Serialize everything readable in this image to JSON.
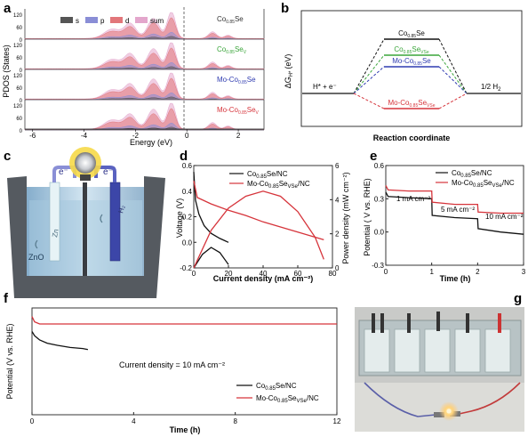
{
  "panel_labels": {
    "a": "a",
    "b": "b",
    "c": "c",
    "d": "d",
    "e": "e",
    "f": "f",
    "g": "g"
  },
  "colors": {
    "black": "#111111",
    "green": "#3aa53a",
    "blue": "#2f3bb0",
    "red": "#d6343b",
    "pink": "#cf6aa8",
    "pdos_s": "#444444",
    "pdos_p": "#8a8ed6",
    "pdos_d": "#e2767a"
  },
  "panel_a": {
    "ylabel": "PDOS (States)",
    "xlabel": "Energy (eV)",
    "xticks": [
      "-6",
      "-4",
      "-2",
      "0",
      "2"
    ],
    "yticks": [
      "0",
      "60",
      "120"
    ],
    "legend": [
      "s",
      "p",
      "d",
      "sum"
    ],
    "rows": [
      {
        "base": "Co",
        "sub": "0.85",
        "tail": "Se",
        "tail_sub": "",
        "color": "#333333"
      },
      {
        "base": "Co",
        "sub": "0.85",
        "tail": "Se",
        "tail_sub": "V",
        "color": "#3aa53a"
      },
      {
        "base": "Mo-Co",
        "sub": "0.85",
        "tail": "Se",
        "tail_sub": "",
        "color": "#2f3bb0"
      },
      {
        "base": "Mo-Co",
        "sub": "0.85",
        "tail": "Se",
        "tail_sub": "V",
        "color": "#d6343b"
      }
    ]
  },
  "panel_b": {
    "ylabel": "ΔG",
    "ylabel_sub": "H*",
    "ylabel_unit": "(eV)",
    "xlabel": "Reaction coordinate",
    "left_state": "H* + e⁻",
    "right_state": "1/2 H",
    "right_state_sub": "2",
    "levels": [
      {
        "base": "Co",
        "sub": "0.85",
        "tail": "Se",
        "tail_sub": "",
        "color": "#111111"
      },
      {
        "base": "Co",
        "sub": "0.85",
        "tail": "Se",
        "tail_sub": "VSe",
        "color": "#3aa53a"
      },
      {
        "base": "Mo-Co",
        "sub": "0.85",
        "tail": "Se",
        "tail_sub": "",
        "color": "#2f3bb0"
      },
      {
        "base": "Mo-Co",
        "sub": "0.85",
        "tail": "Se",
        "tail_sub": "VSe",
        "color": "#d6343b"
      }
    ]
  },
  "panel_c": {
    "electron_left": "e⁻",
    "electron_right": "e⁻",
    "anode": "Zn",
    "product": "ZnO",
    "cathode": "H₂"
  },
  "panel_d": {
    "ylabel_left": "Voltage (V)",
    "ylabel_right": "Power density (mW cm⁻²)",
    "xlabel": "Current density (mA cm⁻²)",
    "legend": [
      {
        "text": "Co0.85Se/NC",
        "color": "#111111"
      },
      {
        "text": "Mo-Co0.85SeVSe/NC",
        "color": "#d6343b"
      }
    ],
    "chart_data": {
      "type": "line",
      "xlim": [
        0,
        80
      ],
      "ylim_left": [
        -0.2,
        0.6
      ],
      "ylim_right": [
        0,
        6
      ],
      "xticks": [
        "0",
        "20",
        "40",
        "60",
        "80"
      ],
      "yticks_left": [
        "-0.2",
        "0.0",
        "0.2",
        "0.4",
        "0.6"
      ],
      "yticks_right": [
        "0",
        "2",
        "4",
        "6"
      ],
      "series": [
        {
          "name": "Co0.85Se/NC voltage",
          "axis": "left",
          "color": "#111111",
          "x": [
            0,
            1,
            3,
            6,
            10,
            15,
            20
          ],
          "y": [
            0.55,
            0.33,
            0.22,
            0.13,
            0.07,
            0.03,
            0.0
          ]
        },
        {
          "name": "Mo-Co0.85SeVSe/NC voltage",
          "axis": "left",
          "color": "#d6343b",
          "x": [
            0,
            2,
            10,
            20,
            30,
            40,
            50,
            60,
            70,
            75
          ],
          "y": [
            0.48,
            0.35,
            0.3,
            0.25,
            0.21,
            0.16,
            0.12,
            0.08,
            0.04,
            0.02
          ]
        },
        {
          "name": "Co0.85Se/NC power",
          "axis": "right",
          "color": "#111111",
          "x": [
            0,
            5,
            10,
            15,
            20
          ],
          "y": [
            0,
            0.8,
            1.2,
            0.9,
            0.2
          ]
        },
        {
          "name": "Mo-Co0.85SeVSe/NC power",
          "axis": "right",
          "color": "#d6343b",
          "x": [
            0,
            10,
            20,
            30,
            40,
            50,
            60,
            70,
            75
          ],
          "y": [
            0,
            2.2,
            3.5,
            4.2,
            4.5,
            4.2,
            3.3,
            1.8,
            0.5
          ]
        }
      ]
    }
  },
  "panel_e": {
    "ylabel": "Potential ( V vs. RHE)",
    "xlabel": "Time (h)",
    "annotations": [
      "1 mA cm⁻²",
      "5 mA cm⁻²",
      "10 mA cm⁻²"
    ],
    "legend": [
      {
        "text": "Co0.85Se/NC",
        "color": "#111111"
      },
      {
        "text": "Mo-Co0.85SeVSe/NC",
        "color": "#d6343b"
      }
    ],
    "chart_data": {
      "type": "line",
      "xlim": [
        0,
        3
      ],
      "ylim": [
        -0.3,
        0.6
      ],
      "xticks": [
        "0",
        "1",
        "2",
        "3"
      ],
      "yticks": [
        "-0.3",
        "0.0",
        "0.3",
        "0.6"
      ],
      "series": [
        {
          "name": "Co0.85Se/NC",
          "color": "#111111",
          "x": [
            0,
            0.05,
            0.5,
            1,
            1.01,
            1.5,
            2,
            2.01,
            2.5,
            3
          ],
          "y": [
            0.36,
            0.32,
            0.31,
            0.3,
            0.15,
            0.13,
            0.12,
            0.03,
            0.0,
            -0.02
          ]
        },
        {
          "name": "Mo-Co0.85SeVSe/NC",
          "color": "#d6343b",
          "x": [
            0,
            0.05,
            0.5,
            1,
            1.01,
            1.5,
            2,
            2.01,
            2.5,
            3
          ],
          "y": [
            0.42,
            0.38,
            0.37,
            0.37,
            0.27,
            0.25,
            0.25,
            0.18,
            0.17,
            0.17
          ]
        }
      ]
    }
  },
  "panel_f": {
    "ylabel": "Potential (V vs. RHE)",
    "xlabel": "Time (h)",
    "annotation": "Current density = 10 mA cm⁻²",
    "legend": [
      {
        "text": "Co0.85Se/NC",
        "color": "#111111"
      },
      {
        "text": "Mo-Co0.85SeVSe/NC",
        "color": "#d6343b"
      }
    ],
    "chart_data": {
      "type": "line",
      "xlim": [
        0,
        12
      ],
      "ylim": [
        -0.6,
        0.4
      ],
      "xticks": [
        "0",
        "4",
        "8",
        "12"
      ],
      "series": [
        {
          "name": "Co0.85Se/NC",
          "color": "#111111",
          "x": [
            0,
            0.1,
            0.3,
            0.6,
            1,
            1.5,
            2,
            2.2
          ],
          "y": [
            0.18,
            0.14,
            0.1,
            0.07,
            0.05,
            0.03,
            0.02,
            0.01
          ]
        },
        {
          "name": "Mo-Co0.85SeVSe/NC",
          "color": "#d6343b",
          "x": [
            0,
            0.1,
            0.3,
            0.6,
            1,
            4,
            8,
            12
          ],
          "y": [
            0.32,
            0.27,
            0.25,
            0.25,
            0.25,
            0.25,
            0.25,
            0.25
          ]
        }
      ]
    }
  }
}
